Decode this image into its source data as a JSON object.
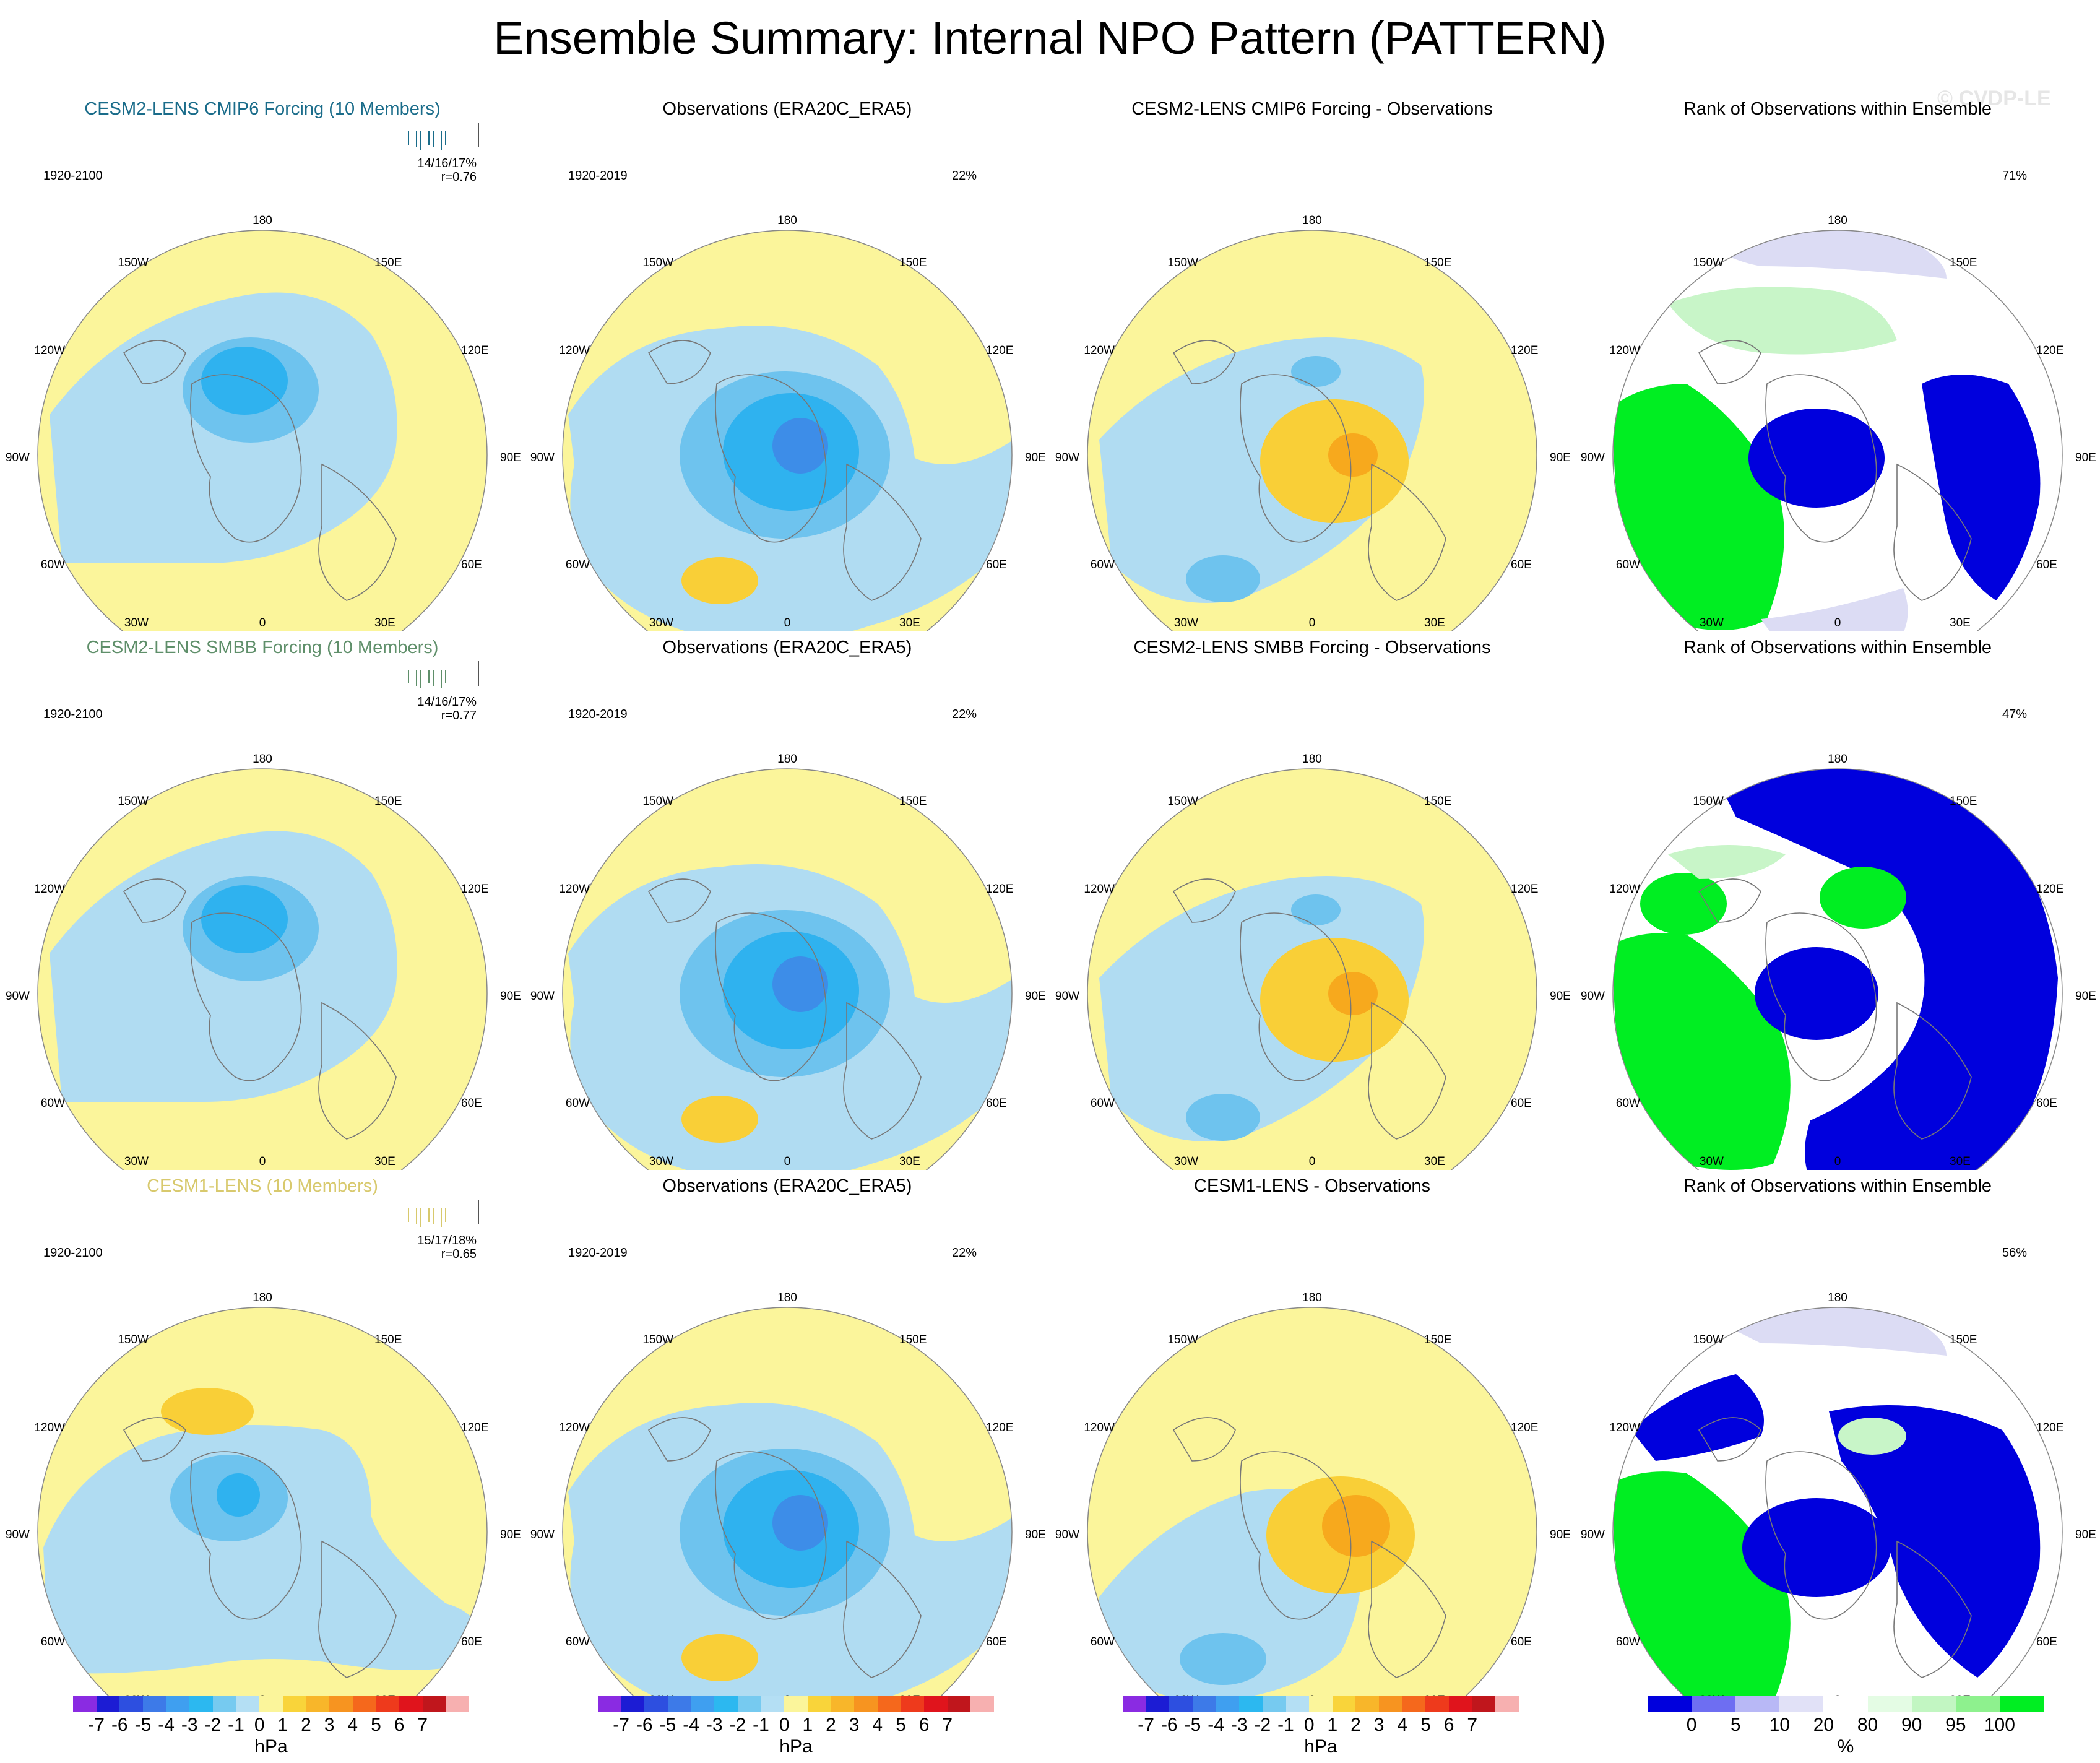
{
  "title": "Ensemble Summary: Internal NPO Pattern (PATTERN)",
  "watermark": "© CVDP-LE",
  "lon_labels": {
    "top": "180",
    "bottom": "0",
    "upper_left": "150W",
    "upper_right": "150E",
    "mid_upper_left": "120W",
    "mid_upper_right": "120E",
    "left": "90W",
    "right": "90E",
    "mid_lower_left": "60W",
    "mid_lower_right": "60E",
    "lower_left": "30W",
    "lower_right": "30E"
  },
  "colors": {
    "yellow": "#fbf59b",
    "light_blue": "#b0dcf2",
    "blue1": "#6ec3ee",
    "blue2": "#2fb2ef",
    "blue3": "#3d8de8",
    "orange1": "#f9cf37",
    "orange2": "#f7a91d",
    "rank_blue": "#0000dd",
    "rank_green": "#00ee22",
    "rank_lightgreen": "#c8f5c8",
    "rank_lavender": "#dcdcf4",
    "ensemble_cmip6": "#1a6c8a",
    "ensemble_smbb": "#5f8f6a",
    "ensemble_cesm1": "#d8c96d"
  },
  "rows": [
    {
      "model": {
        "title": "CESM2-LENS CMIP6 Forcing (10 Members)",
        "title_color": "#1a6c8a",
        "period": "1920-2100",
        "stats": "14/16/17%",
        "r": "r=0.76"
      },
      "obs": {
        "title": "Observations (ERA20C_ERA5)",
        "period": "1920-2019",
        "pct": "22%"
      },
      "diff": {
        "title": "CESM2-LENS CMIP6 Forcing - Observations"
      },
      "rank": {
        "title": "Rank of Observations within Ensemble",
        "pct": "71%"
      }
    },
    {
      "model": {
        "title": "CESM2-LENS SMBB Forcing (10 Members)",
        "title_color": "#5f8f6a",
        "period": "1920-2100",
        "stats": "14/16/17%",
        "r": "r=0.77"
      },
      "obs": {
        "title": "Observations (ERA20C_ERA5)",
        "period": "1920-2019",
        "pct": "22%"
      },
      "diff": {
        "title": "CESM2-LENS SMBB Forcing - Observations"
      },
      "rank": {
        "title": "Rank of Observations within Ensemble",
        "pct": "47%"
      }
    },
    {
      "model": {
        "title": "CESM1-LENS (10 Members)",
        "title_color": "#d8c96d",
        "period": "1920-2100",
        "stats": "15/17/18%",
        "r": "r=0.65"
      },
      "obs": {
        "title": "Observations (ERA20C_ERA5)",
        "period": "1920-2019",
        "pct": "22%"
      },
      "diff": {
        "title": "CESM1-LENS - Observations"
      },
      "rank": {
        "title": "Rank of Observations within Ensemble",
        "pct": "56%"
      }
    }
  ],
  "colorbar_hpa": {
    "labels": [
      "-7",
      "-6",
      "-5",
      "-4",
      "-3",
      "-2",
      "-1",
      "0",
      "1",
      "2",
      "3",
      "4",
      "5",
      "6",
      "7"
    ],
    "colors": [
      "#8a2be2",
      "#1c1cd4",
      "#2d4fe0",
      "#3d7ae8",
      "#3f9ff0",
      "#2cb8f0",
      "#76caf0",
      "#b4dff4",
      "#fbf59b",
      "#f9d43a",
      "#f8b62a",
      "#f79420",
      "#f5681c",
      "#ee3a1c",
      "#e0141c",
      "#c0161c",
      "#f7b0b0"
    ],
    "unit": "hPa"
  },
  "colorbar_rank": {
    "labels": [
      "0",
      "5",
      "10",
      "20",
      "80",
      "90",
      "95",
      "100"
    ],
    "colors": [
      "#0000dd",
      "#6e6ef2",
      "#b8b8f6",
      "#e1e1f7",
      "#ffffff",
      "#e4fce4",
      "#c2f6c2",
      "#8ef18e",
      "#00ee22"
    ],
    "unit": "%"
  }
}
